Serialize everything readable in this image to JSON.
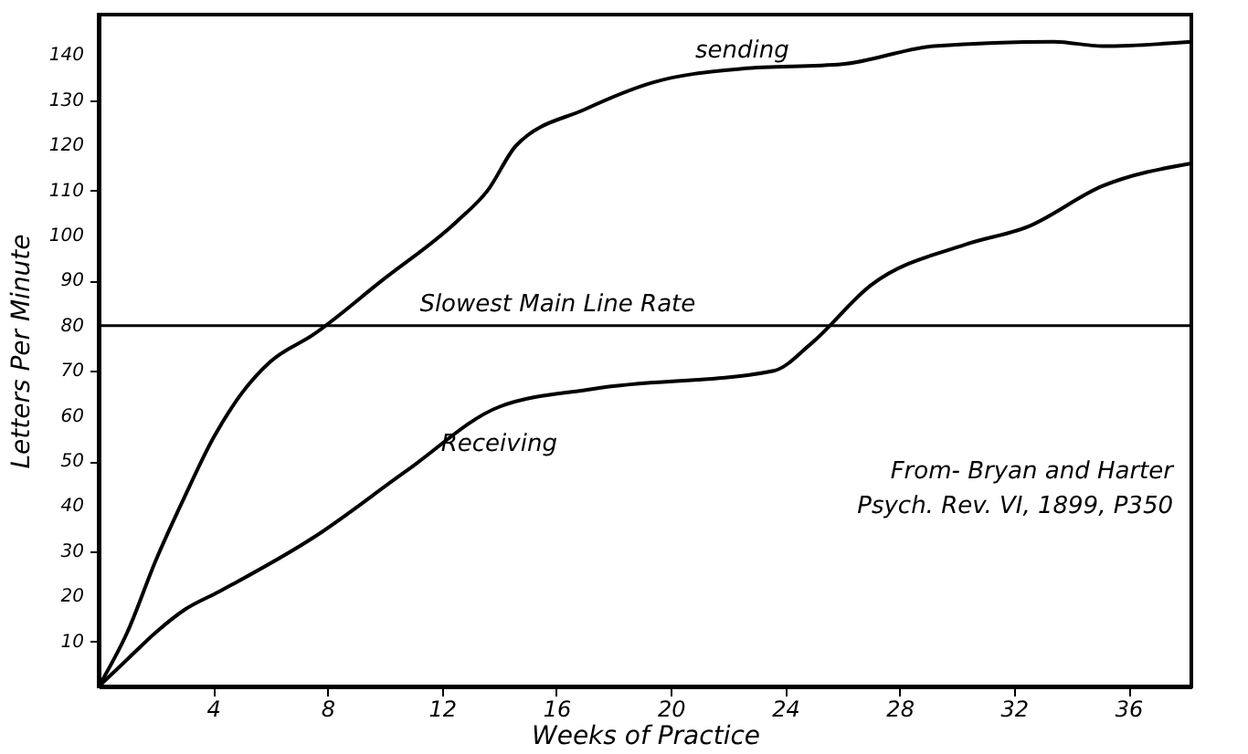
{
  "chart_data": {
    "type": "line",
    "xlabel": "Weeks of Practice",
    "ylabel": "Letters Per Minute",
    "xlim": [
      0,
      38.2
    ],
    "ylim": [
      0,
      149
    ],
    "xticks": [
      4,
      8,
      12,
      16,
      20,
      24,
      28,
      32,
      36
    ],
    "yticks": [
      10,
      20,
      30,
      40,
      50,
      60,
      70,
      80,
      90,
      100,
      110,
      120,
      130,
      140
    ],
    "grid": false,
    "marker": "none",
    "line_style": "solid",
    "series": [
      {
        "name": "sending",
        "color": "#000000",
        "x": [
          0,
          1,
          2,
          3,
          4,
          5,
          6,
          7.5,
          9.9,
          12.5,
          13.6,
          14.6,
          17,
          19.4,
          22.5,
          26,
          29.2,
          33.4,
          35.1,
          38.2
        ],
        "values": [
          0,
          12,
          28,
          42,
          55,
          65,
          72,
          78,
          90,
          103,
          110,
          120,
          128,
          134,
          137,
          138,
          142,
          143,
          142,
          143
        ]
      },
      {
        "name": "Receiving",
        "color": "#000000",
        "x": [
          0,
          1,
          2,
          3,
          4.2,
          7.5,
          10.8,
          14,
          17.3,
          23.6,
          24.9,
          27,
          30.3,
          32.5,
          35.1,
          38.2
        ],
        "values": [
          0,
          6,
          12,
          17,
          21,
          33,
          48,
          62,
          66,
          70,
          76,
          89,
          98,
          102,
          111,
          116
        ]
      }
    ],
    "ref_lines": [
      {
        "axis": "y",
        "value": 80,
        "label": "Slowest Main Line Rate",
        "color": "#000000"
      }
    ],
    "annotations": [
      "From- Bryan and Harter",
      "Psych. Rev. VI, 1899, P350"
    ]
  }
}
